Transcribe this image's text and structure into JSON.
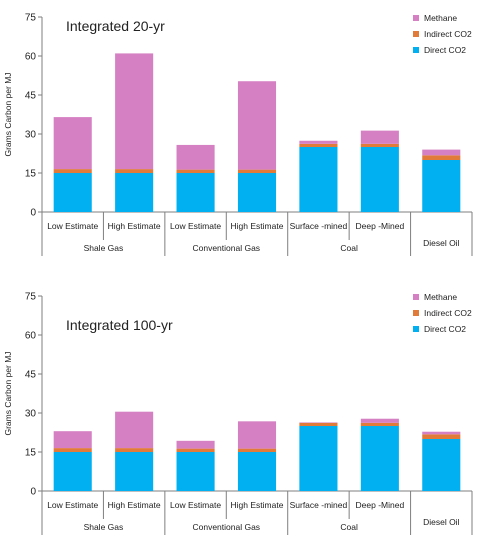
{
  "chart_data": [
    {
      "type": "bar",
      "stacked": true,
      "title": "Integrated 20-yr",
      "ylabel": "Grams Carbon per MJ",
      "xlabel": "",
      "ylim": [
        0,
        75
      ],
      "yticks": [
        0,
        15,
        30,
        45,
        60,
        75
      ],
      "categories": [
        "Low Estimate",
        "High Estimate",
        "Low Estimate",
        "High Estimate",
        "Surface -mined",
        "Deep -Mined",
        ""
      ],
      "groups": [
        {
          "label": "Shale Gas",
          "span": 2
        },
        {
          "label": "Conventional Gas",
          "span": 2
        },
        {
          "label": "Coal",
          "span": 2
        },
        {
          "label": "Diesel Oil",
          "span": 1
        }
      ],
      "series": [
        {
          "name": "Direct CO2",
          "color": "#00b0f0",
          "values": [
            15,
            15,
            15,
            15,
            25,
            25,
            20
          ]
        },
        {
          "name": "Indirect CO2",
          "color": "#e07b39",
          "values": [
            1.5,
            1.5,
            1.3,
            1.3,
            1.2,
            1.2,
            1.8
          ]
        },
        {
          "name": "Methane",
          "color": "#d580c2",
          "values": [
            20,
            44.5,
            9.5,
            34,
            1.2,
            5.1,
            2.2
          ]
        }
      ],
      "legend_position": "top-right",
      "grid": false
    },
    {
      "type": "bar",
      "stacked": true,
      "title": "Integrated 100-yr",
      "ylabel": "Grams Carbon per MJ",
      "xlabel": "",
      "ylim": [
        0,
        75
      ],
      "yticks": [
        0,
        15,
        30,
        45,
        60,
        75
      ],
      "categories": [
        "Low Estimate",
        "High Estimate",
        "Low Estimate",
        "High Estimate",
        "Surface -mined",
        "Deep -Mined",
        ""
      ],
      "groups": [
        {
          "label": "Shale Gas",
          "span": 2
        },
        {
          "label": "Conventional Gas",
          "span": 2
        },
        {
          "label": "Coal",
          "span": 2
        },
        {
          "label": "Diesel Oil",
          "span": 1
        }
      ],
      "series": [
        {
          "name": "Direct CO2",
          "color": "#00b0f0",
          "values": [
            15,
            15,
            15,
            15,
            25,
            25,
            20
          ]
        },
        {
          "name": "Indirect CO2",
          "color": "#e07b39",
          "values": [
            1.5,
            1.5,
            1.3,
            1.3,
            1.2,
            1.2,
            1.8
          ]
        },
        {
          "name": "Methane",
          "color": "#d580c2",
          "values": [
            6.5,
            14,
            3,
            10.5,
            0.2,
            1.6,
            1.0
          ]
        }
      ],
      "legend_position": "top-right",
      "grid": false
    }
  ]
}
